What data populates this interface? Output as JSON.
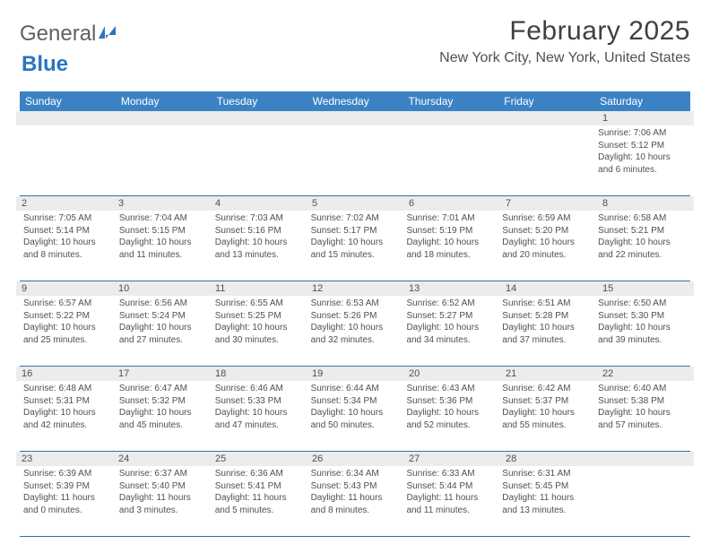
{
  "brand": {
    "word1": "General",
    "word2": "Blue"
  },
  "title": "February 2025",
  "location": "New York City, New York, United States",
  "header_bg": "#3b82c4",
  "daynum_bg": "#ececec",
  "week_border": "#3b6fa0",
  "weekdays": [
    "Sunday",
    "Monday",
    "Tuesday",
    "Wednesday",
    "Thursday",
    "Friday",
    "Saturday"
  ],
  "weeks": [
    [
      {
        "n": "",
        "t": ""
      },
      {
        "n": "",
        "t": ""
      },
      {
        "n": "",
        "t": ""
      },
      {
        "n": "",
        "t": ""
      },
      {
        "n": "",
        "t": ""
      },
      {
        "n": "",
        "t": ""
      },
      {
        "n": "1",
        "t": "Sunrise: 7:06 AM\nSunset: 5:12 PM\nDaylight: 10 hours and 6 minutes."
      }
    ],
    [
      {
        "n": "2",
        "t": "Sunrise: 7:05 AM\nSunset: 5:14 PM\nDaylight: 10 hours and 8 minutes."
      },
      {
        "n": "3",
        "t": "Sunrise: 7:04 AM\nSunset: 5:15 PM\nDaylight: 10 hours and 11 minutes."
      },
      {
        "n": "4",
        "t": "Sunrise: 7:03 AM\nSunset: 5:16 PM\nDaylight: 10 hours and 13 minutes."
      },
      {
        "n": "5",
        "t": "Sunrise: 7:02 AM\nSunset: 5:17 PM\nDaylight: 10 hours and 15 minutes."
      },
      {
        "n": "6",
        "t": "Sunrise: 7:01 AM\nSunset: 5:19 PM\nDaylight: 10 hours and 18 minutes."
      },
      {
        "n": "7",
        "t": "Sunrise: 6:59 AM\nSunset: 5:20 PM\nDaylight: 10 hours and 20 minutes."
      },
      {
        "n": "8",
        "t": "Sunrise: 6:58 AM\nSunset: 5:21 PM\nDaylight: 10 hours and 22 minutes."
      }
    ],
    [
      {
        "n": "9",
        "t": "Sunrise: 6:57 AM\nSunset: 5:22 PM\nDaylight: 10 hours and 25 minutes."
      },
      {
        "n": "10",
        "t": "Sunrise: 6:56 AM\nSunset: 5:24 PM\nDaylight: 10 hours and 27 minutes."
      },
      {
        "n": "11",
        "t": "Sunrise: 6:55 AM\nSunset: 5:25 PM\nDaylight: 10 hours and 30 minutes."
      },
      {
        "n": "12",
        "t": "Sunrise: 6:53 AM\nSunset: 5:26 PM\nDaylight: 10 hours and 32 minutes."
      },
      {
        "n": "13",
        "t": "Sunrise: 6:52 AM\nSunset: 5:27 PM\nDaylight: 10 hours and 34 minutes."
      },
      {
        "n": "14",
        "t": "Sunrise: 6:51 AM\nSunset: 5:28 PM\nDaylight: 10 hours and 37 minutes."
      },
      {
        "n": "15",
        "t": "Sunrise: 6:50 AM\nSunset: 5:30 PM\nDaylight: 10 hours and 39 minutes."
      }
    ],
    [
      {
        "n": "16",
        "t": "Sunrise: 6:48 AM\nSunset: 5:31 PM\nDaylight: 10 hours and 42 minutes."
      },
      {
        "n": "17",
        "t": "Sunrise: 6:47 AM\nSunset: 5:32 PM\nDaylight: 10 hours and 45 minutes."
      },
      {
        "n": "18",
        "t": "Sunrise: 6:46 AM\nSunset: 5:33 PM\nDaylight: 10 hours and 47 minutes."
      },
      {
        "n": "19",
        "t": "Sunrise: 6:44 AM\nSunset: 5:34 PM\nDaylight: 10 hours and 50 minutes."
      },
      {
        "n": "20",
        "t": "Sunrise: 6:43 AM\nSunset: 5:36 PM\nDaylight: 10 hours and 52 minutes."
      },
      {
        "n": "21",
        "t": "Sunrise: 6:42 AM\nSunset: 5:37 PM\nDaylight: 10 hours and 55 minutes."
      },
      {
        "n": "22",
        "t": "Sunrise: 6:40 AM\nSunset: 5:38 PM\nDaylight: 10 hours and 57 minutes."
      }
    ],
    [
      {
        "n": "23",
        "t": "Sunrise: 6:39 AM\nSunset: 5:39 PM\nDaylight: 11 hours and 0 minutes."
      },
      {
        "n": "24",
        "t": "Sunrise: 6:37 AM\nSunset: 5:40 PM\nDaylight: 11 hours and 3 minutes."
      },
      {
        "n": "25",
        "t": "Sunrise: 6:36 AM\nSunset: 5:41 PM\nDaylight: 11 hours and 5 minutes."
      },
      {
        "n": "26",
        "t": "Sunrise: 6:34 AM\nSunset: 5:43 PM\nDaylight: 11 hours and 8 minutes."
      },
      {
        "n": "27",
        "t": "Sunrise: 6:33 AM\nSunset: 5:44 PM\nDaylight: 11 hours and 11 minutes."
      },
      {
        "n": "28",
        "t": "Sunrise: 6:31 AM\nSunset: 5:45 PM\nDaylight: 11 hours and 13 minutes."
      },
      {
        "n": "",
        "t": ""
      }
    ]
  ]
}
